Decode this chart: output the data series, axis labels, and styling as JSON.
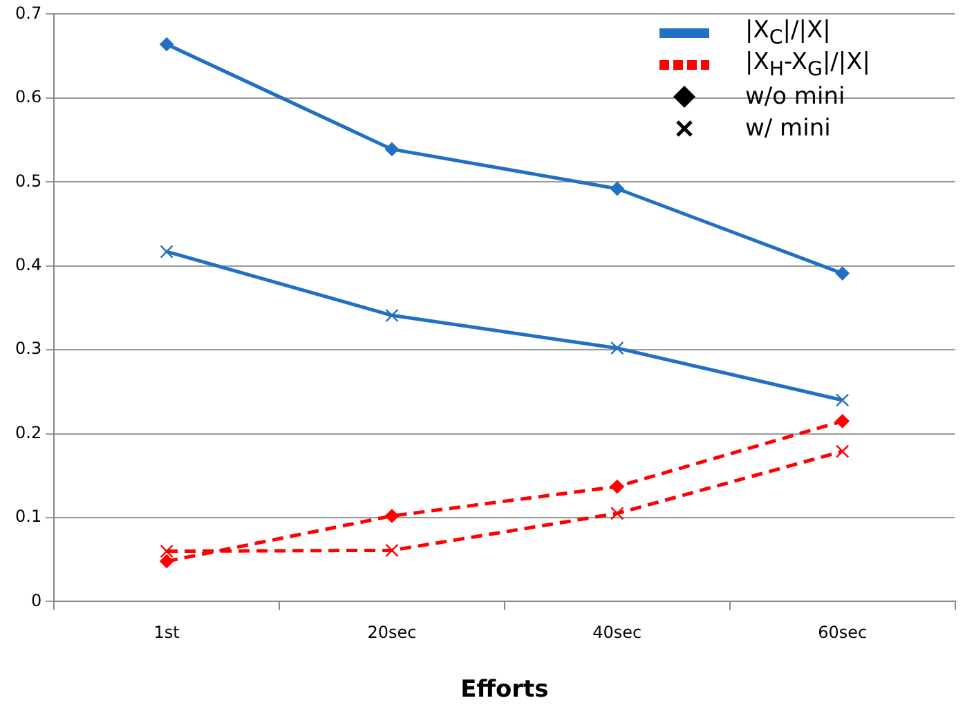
{
  "chart_data": {
    "type": "line",
    "xlabel": "Efforts",
    "categories": [
      "1st",
      "20sec",
      "40sec",
      "60sec"
    ],
    "series": [
      {
        "color": "#2270c4",
        "values": [
          0.664,
          0.539,
          0.492,
          0.391
        ],
        "marker": "diamond",
        "line_style": "solid"
      },
      {
        "color": "#2270c4",
        "values": [
          0.417,
          0.341,
          0.302,
          0.24
        ],
        "marker": "cross",
        "line_style": "solid"
      },
      {
        "color": "#ff0000",
        "values": [
          0.048,
          0.102,
          0.137,
          0.215
        ],
        "marker": "diamond",
        "line_style": "dashed"
      },
      {
        "color": "#ff0000",
        "values": [
          0.06,
          0.061,
          0.105,
          0.179
        ],
        "marker": "cross",
        "line_style": "dashed"
      }
    ],
    "ylim": [
      0,
      0.7
    ],
    "yticks": [
      0,
      0.1,
      0.2,
      0.3,
      0.4,
      0.5,
      0.6,
      0.7
    ],
    "grid": "y",
    "annotations": [
      "|X$_{C}$|/|X|",
      "|X$_{H}$-X$_{G}$|/|X|",
      "w/o mini",
      "w/ mini"
    ]
  }
}
